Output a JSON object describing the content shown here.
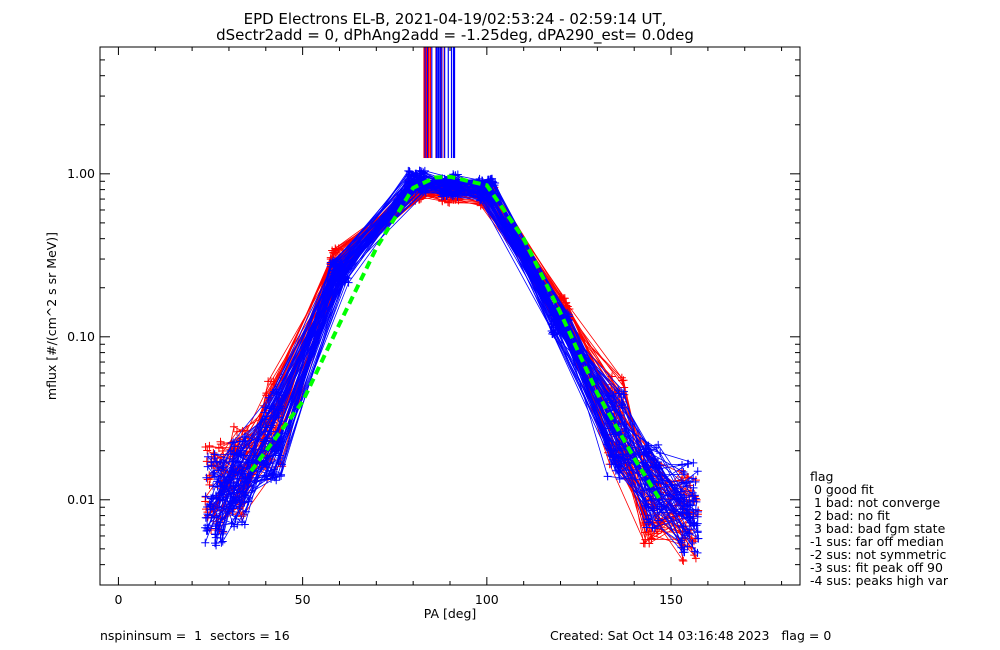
{
  "chart_data": {
    "type": "line",
    "title": [
      "EPD Electrons EL-B, 2021-04-19/02:53:24 - 02:59:14 UT,",
      "dSectr2add = 0, dPhAng2add = -1.25deg, dPA290_est=   0.0deg"
    ],
    "xlabel": "PA [deg]",
    "ylabel": "mflux [#/(cm^2 s sr MeV)]",
    "xlim": [
      -5,
      185
    ],
    "ylim": [
      0.003,
      6.0
    ],
    "yscale": "log",
    "grid": false,
    "xticks": [
      0,
      50,
      100,
      150
    ],
    "xtick_labels": [
      "0",
      "50",
      "100",
      "150"
    ],
    "yticks": [
      0.01,
      0.1,
      1.0
    ],
    "ytick_labels": [
      "0.01",
      "0.10",
      "1.00"
    ],
    "series": [
      {
        "color": "#ff0000",
        "marker": "+",
        "x": [
          26,
          33,
          42,
          60,
          81,
          90,
          100,
          120,
          135,
          145,
          155
        ],
        "y": [
          0.012,
          0.015,
          0.03,
          0.3,
          0.8,
          0.78,
          0.75,
          0.15,
          0.03,
          0.01,
          0.008
        ]
      },
      {
        "color": "#0000ff",
        "marker": "+",
        "x": [
          26,
          33,
          42,
          60,
          81,
          90,
          100,
          120,
          135,
          145,
          155
        ],
        "y": [
          0.01,
          0.013,
          0.025,
          0.25,
          0.9,
          0.85,
          0.8,
          0.12,
          0.025,
          0.012,
          0.009
        ]
      },
      {
        "color": "#00ff00",
        "style": "dashed",
        "x": [
          36,
          50,
          60,
          70,
          80,
          86,
          90,
          100,
          110,
          120,
          130,
          140,
          147
        ],
        "y": [
          0.015,
          0.04,
          0.12,
          0.35,
          0.82,
          0.95,
          0.96,
          0.85,
          0.4,
          0.14,
          0.045,
          0.018,
          0.01
        ]
      }
    ],
    "legend": {
      "placement": "right-bottom",
      "title": "flag",
      "entries": [
        " 0 good fit",
        " 1 bad: not converge",
        " 2 bad: no fit",
        " 3 bad: bad fgm state",
        "-1 sus: far off median",
        "-2 sus: not symmetric",
        "-3 sus: fit peak off 90",
        "-4 sus: peaks high var"
      ]
    }
  },
  "footer": {
    "left": "nspininsum =  1  sectors = 16",
    "right": "Created: Sat Oct 14 03:16:48 2023   flag = 0"
  },
  "colors": {
    "red": "#ff0000",
    "blue": "#0000ff",
    "green": "#00ff00"
  }
}
